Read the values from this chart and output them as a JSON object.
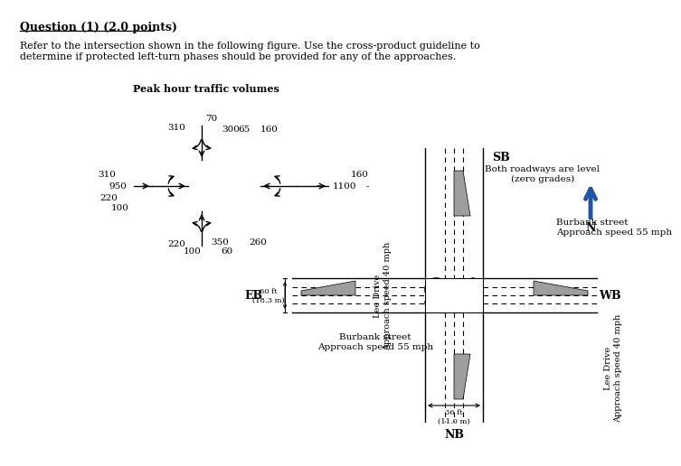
{
  "title": "Question (1) (2.0 points)",
  "body": "Refer to the intersection shown in the following figure. Use the cross-product guideline to\ndetermine if protected left-turn phases should be provided for any of the approaches.",
  "peak_label": "Peak hour traffic volumes",
  "sb": "SB",
  "nb": "NB",
  "eb": "EB",
  "wb": "WB",
  "north_lbl": "N",
  "level_text": "Both roadways are level\n(zero grades)",
  "lee_drive": "Lee Drive\nApproach speed 40 mph",
  "lee_drive2": "Lee Drive\nApproach speed 40 mph",
  "burbank1": "Burbank street\nApproach speed 55 mph",
  "burbank2": "Burbank street\nApproach speed 55 mph",
  "eb_width": "60 ft\n(18.3 m)",
  "nb_width": "36 ft\n(11.0 m)",
  "n70": "70",
  "n310": "310",
  "n300": "300",
  "n65": "65",
  "e160": "160",
  "e1100": "1100",
  "edash": "-",
  "w950": "950",
  "s220": "220",
  "s100": "100",
  "s350": "350",
  "s60": "60",
  "s260": "260",
  "arrow_blue": "#2055A4",
  "gray": "#9e9e9e",
  "bg": "#ffffff"
}
